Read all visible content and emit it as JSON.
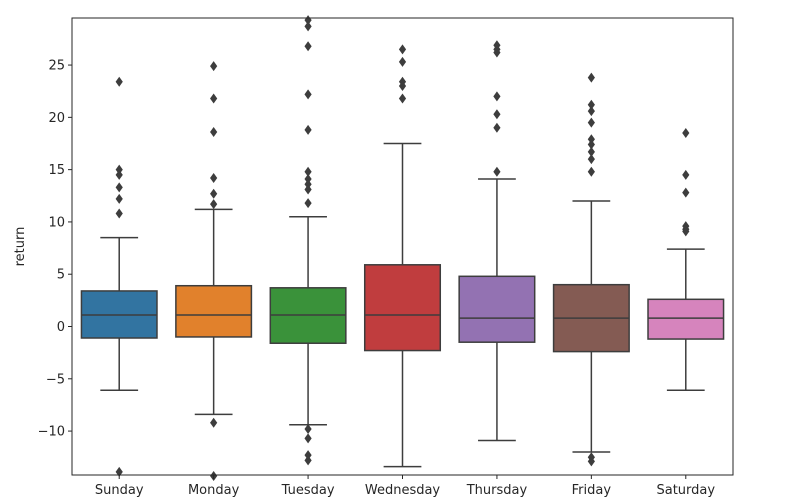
{
  "chart_data": {
    "type": "box",
    "title": "",
    "xlabel": "",
    "ylabel": "return",
    "ylim": [
      -14.2,
      29.5
    ],
    "yticks": [
      -10,
      -5,
      0,
      5,
      10,
      15,
      20,
      25
    ],
    "grid": false,
    "categories": [
      "Sunday",
      "Monday",
      "Tuesday",
      "Wednesday",
      "Thursday",
      "Friday",
      "Saturday"
    ],
    "boxes": [
      {
        "label": "Sunday",
        "color": "#3274a1",
        "q1": -1.1,
        "median": 1.1,
        "q3": 3.4,
        "whisker_low": -6.1,
        "whisker_high": 8.5,
        "outliers": [
          23.4,
          15.0,
          14.5,
          13.3,
          12.2,
          10.8,
          -13.9
        ]
      },
      {
        "label": "Monday",
        "color": "#e1812c",
        "q1": -1.0,
        "median": 1.1,
        "q3": 3.9,
        "whisker_low": -8.4,
        "whisker_high": 11.2,
        "outliers": [
          24.9,
          21.8,
          18.6,
          14.2,
          12.7,
          11.7,
          -9.2,
          -14.3
        ]
      },
      {
        "label": "Tuesday",
        "color": "#3a923a",
        "q1": -1.6,
        "median": 1.1,
        "q3": 3.7,
        "whisker_low": -9.4,
        "whisker_high": 10.5,
        "outliers": [
          29.3,
          28.7,
          26.8,
          22.2,
          18.8,
          14.8,
          14.1,
          13.6,
          13.1,
          11.8,
          -9.8,
          -10.7,
          -12.3,
          -12.8
        ]
      },
      {
        "label": "Wednesday",
        "color": "#c03d3e",
        "q1": -2.3,
        "median": 1.1,
        "q3": 5.9,
        "whisker_low": -13.4,
        "whisker_high": 17.5,
        "outliers": [
          26.5,
          25.3,
          23.4,
          23.0,
          21.8
        ]
      },
      {
        "label": "Thursday",
        "color": "#9372b2",
        "q1": -1.5,
        "median": 0.8,
        "q3": 4.8,
        "whisker_low": -10.9,
        "whisker_high": 14.1,
        "outliers": [
          26.9,
          26.5,
          26.2,
          22.0,
          20.3,
          19.0,
          14.8
        ]
      },
      {
        "label": "Friday",
        "color": "#845b53",
        "q1": -2.4,
        "median": 0.8,
        "q3": 4.0,
        "whisker_low": -12.0,
        "whisker_high": 12.0,
        "outliers": [
          23.8,
          21.2,
          20.6,
          19.5,
          17.9,
          17.4,
          16.7,
          16.0,
          14.8,
          -12.5,
          -12.9
        ]
      },
      {
        "label": "Saturday",
        "color": "#d684bd",
        "q1": -1.2,
        "median": 0.8,
        "q3": 2.6,
        "whisker_low": -6.1,
        "whisker_high": 7.4,
        "outliers": [
          18.5,
          14.5,
          12.8,
          9.6,
          9.3,
          9.1
        ]
      }
    ]
  }
}
